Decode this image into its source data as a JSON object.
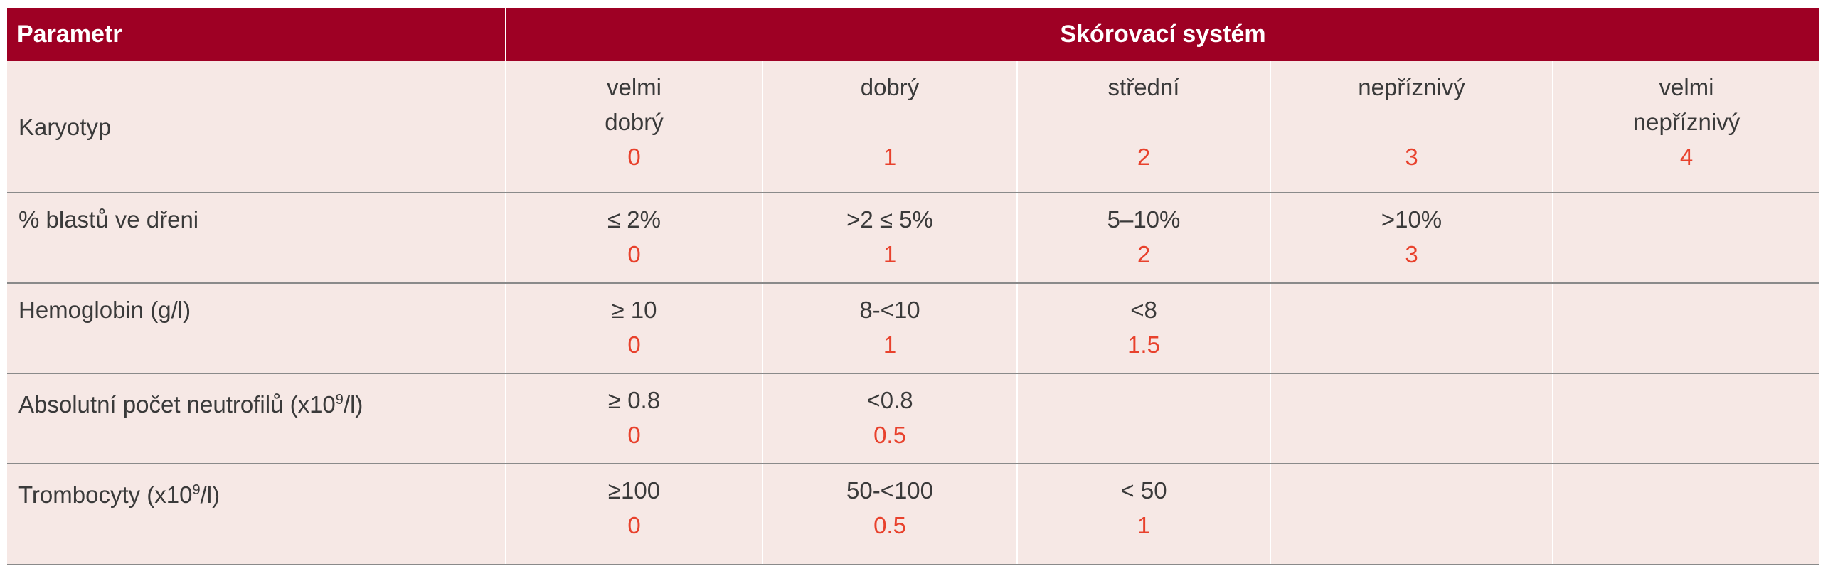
{
  "table": {
    "header": {
      "param": "Parametr",
      "system": "Skórovací systém"
    },
    "rows": [
      {
        "param": "Karyotyp",
        "cells": [
          {
            "label_line1": "velmi",
            "label_line2": "dobrý",
            "points": "0"
          },
          {
            "label_line1": "dobrý",
            "label_line2": "",
            "points": "1"
          },
          {
            "label_line1": "střední",
            "label_line2": "",
            "points": "2"
          },
          {
            "label_line1": "nepříznivý",
            "label_line2": "",
            "points": "3"
          },
          {
            "label_line1": "velmi",
            "label_line2": "nepříznivý",
            "points": "4"
          }
        ]
      },
      {
        "param": "% blastů ve dřeni",
        "cells": [
          {
            "label": "≤ 2%",
            "points": "0"
          },
          {
            "label": ">2 ≤ 5%",
            "points": "1"
          },
          {
            "label": "5–10%",
            "points": "2"
          },
          {
            "label": ">10%",
            "points": "3"
          },
          {
            "label": "",
            "points": ""
          }
        ]
      },
      {
        "param": "Hemoglobin (g/l)",
        "cells": [
          {
            "label": "≥ 10",
            "points": "0"
          },
          {
            "label": "8-<10",
            "points": "1"
          },
          {
            "label": "<8",
            "points": "1.5"
          },
          {
            "label": "",
            "points": ""
          },
          {
            "label": "",
            "points": ""
          }
        ]
      },
      {
        "param_prefix": "Absolutní počet neutrofilů (x10",
        "param_sup": "9",
        "param_suffix": "/l)",
        "cells": [
          {
            "label": "≥ 0.8",
            "points": "0"
          },
          {
            "label": "<0.8",
            "points": "0.5"
          },
          {
            "label": "",
            "points": ""
          },
          {
            "label": "",
            "points": ""
          },
          {
            "label": "",
            "points": ""
          }
        ]
      },
      {
        "param_prefix": "Trombocyty (x10",
        "param_sup": "9",
        "param_suffix": "/l)",
        "cells": [
          {
            "label": "≥100",
            "points": "0"
          },
          {
            "label": "50-<100",
            "points": "0.5"
          },
          {
            "label": "< 50",
            "points": "1"
          },
          {
            "label": "",
            "points": ""
          },
          {
            "label": "",
            "points": ""
          }
        ]
      }
    ]
  },
  "colors": {
    "header_bg": "#9e0024",
    "header_text": "#ffffff",
    "cell_bg": "#f6e8e5",
    "points_text": "#e8412c",
    "body_text": "#3a3a3a"
  }
}
